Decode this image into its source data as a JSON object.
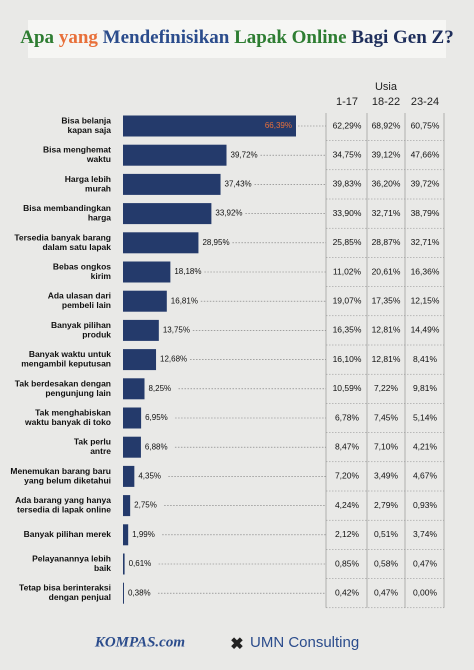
{
  "chart_data": {
    "type": "bar",
    "title_parts": [
      {
        "text": "Apa",
        "color": "#2e7d32"
      },
      {
        "text": "yang",
        "color": "#e8703a"
      },
      {
        "text": "Mendefinisikan",
        "color": "#2b4c8c"
      },
      {
        "text": "Lapak Online",
        "color": "#2e7d32"
      },
      {
        "text": "Bagi Gen Z?",
        "color": "#1f2f5c"
      }
    ],
    "categories": [
      [
        "Bisa belanja",
        "kapan saja"
      ],
      [
        "Bisa menghemat",
        "waktu"
      ],
      [
        "Harga lebih",
        "murah"
      ],
      [
        "Bisa membandingkan",
        "harga"
      ],
      [
        "Tersedia banyak barang",
        "dalam satu lapak"
      ],
      [
        "Bebas ongkos",
        "kirim"
      ],
      [
        "Ada ulasan dari",
        "pembeli lain"
      ],
      [
        "Banyak pilihan",
        "produk"
      ],
      [
        "Banyak waktu untuk",
        "mengambil keputusan"
      ],
      [
        "Tak berdesakan dengan",
        "pengunjung lain"
      ],
      [
        "Tak menghabiskan",
        "waktu banyak di toko"
      ],
      [
        "Tak perlu",
        "antre"
      ],
      [
        "Menemukan barang baru",
        "yang belum diketahui"
      ],
      [
        "Ada barang yang hanya",
        "tersedia di lapak online"
      ],
      [
        "Banyak pilihan merek"
      ],
      [
        "Pelayanannya lebih",
        "baik"
      ],
      [
        "Tetap bisa berinteraksi",
        "dengan penjual"
      ]
    ],
    "values": [
      66.39,
      39.72,
      37.43,
      33.92,
      28.95,
      18.18,
      16.81,
      13.75,
      12.68,
      8.25,
      6.95,
      6.88,
      4.35,
      2.75,
      1.99,
      0.61,
      0.38
    ],
    "value_labels": [
      "66,39%",
      "39,72%",
      "37,43%",
      "33,92%",
      "28,95%",
      "18,18%",
      "16,81%",
      "13,75%",
      "12,68%",
      "8,25%",
      "6,95%",
      "6,88%",
      "4,35%",
      "2,75%",
      "1,99%",
      "0,61%",
      "0,38%"
    ],
    "color": "#243a6b",
    "highlight_label_color": "#e8703a",
    "table": {
      "title": "Usia",
      "columns": [
        {
          "name": "1-17",
          "values": [
            62.29,
            34.75,
            39.83,
            33.9,
            25.85,
            11.02,
            19.07,
            16.35,
            16.1,
            10.59,
            6.78,
            8.47,
            7.2,
            4.24,
            2.12,
            0.85,
            0.42
          ],
          "value_labels": [
            "62,29%",
            "34,75%",
            "39,83%",
            "33,90%",
            "25,85%",
            "11,02%",
            "19,07%",
            "16,35%",
            "16,10%",
            "10,59%",
            "6,78%",
            "8,47%",
            "7,20%",
            "4,24%",
            "2,12%",
            "0,85%",
            "0,42%"
          ]
        },
        {
          "name": "18-22",
          "values": [
            68.92,
            39.12,
            36.2,
            32.71,
            28.87,
            20.61,
            17.35,
            12.81,
            12.81,
            7.22,
            7.45,
            7.1,
            3.49,
            2.79,
            0.51,
            0.58,
            0.47
          ],
          "value_labels": [
            "68,92%",
            "39,12%",
            "36,20%",
            "32,71%",
            "28,87%",
            "20,61%",
            "17,35%",
            "12,81%",
            "12,81%",
            "7,22%",
            "7,45%",
            "7,10%",
            "3,49%",
            "2,79%",
            "0,51%",
            "0,58%",
            "0,47%"
          ]
        },
        {
          "name": "23-24",
          "values": [
            60.75,
            47.66,
            39.72,
            38.79,
            32.71,
            16.36,
            12.15,
            14.49,
            8.41,
            9.81,
            5.14,
            4.21,
            4.67,
            0.93,
            3.74,
            0.47,
            0.0
          ],
          "value_labels": [
            "60,75%",
            "47,66%",
            "39,72%",
            "38,79%",
            "32,71%",
            "16,36%",
            "12,15%",
            "14,49%",
            "8,41%",
            "9,81%",
            "5,14%",
            "4,21%",
            "4,67%",
            "0,93%",
            "3,74%",
            "0,47%",
            "0,00%"
          ]
        }
      ]
    },
    "footer": {
      "left": "KOMPAS.com",
      "right": "UMN Consulting"
    }
  }
}
